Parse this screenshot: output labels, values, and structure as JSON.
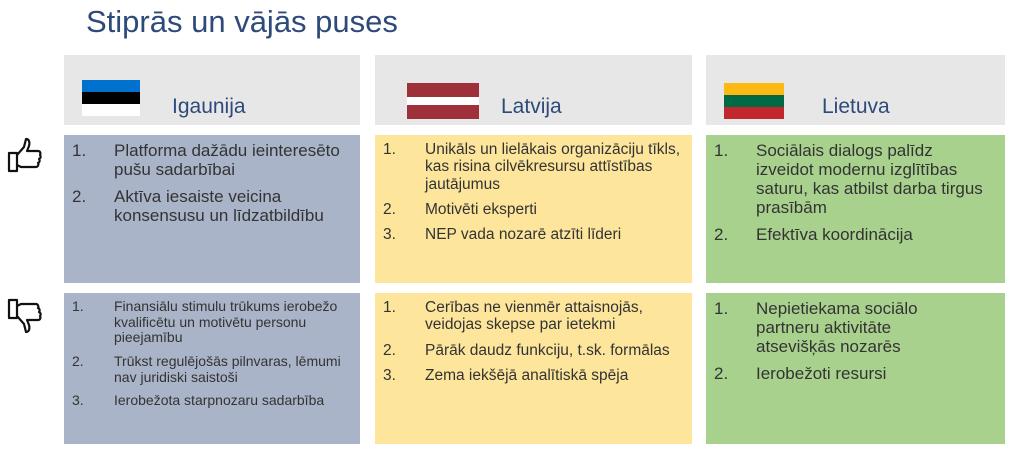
{
  "title": "Stiprās un vājās puses",
  "colors": {
    "estonia": "#aab4c8",
    "latvia": "#fde59b",
    "lithuania": "#a9d18e",
    "header": "#e7e7e7",
    "title": "#2e4a78"
  },
  "icons": {
    "strengths": "thumbs-up-icon",
    "weaknesses": "thumbs-down-icon"
  },
  "columns": [
    {
      "country": "Igaunija",
      "flag": [
        "#0072ce",
        "#000000",
        "#ffffff"
      ],
      "strengths": [
        {
          "n": "1.",
          "text": "Platforma dažādu ieinteresēto pušu sadarbībai"
        },
        {
          "n": "2.",
          "text": "Aktīva iesaiste veicina konsensusu un līdzatbildību"
        }
      ],
      "weaknesses": [
        {
          "n": "1.",
          "text": "Finansiālu stimulu trūkums ierobežo kvalificētu un motivētu personu pieejamību"
        },
        {
          "n": "2.",
          "text": "Trūkst regulējošās pilnvaras, lēmumi nav juridiski saistoši"
        },
        {
          "n": "3.",
          "text": "Ierobežota starpnozaru sadarbība"
        }
      ]
    },
    {
      "country": "Latvija",
      "flag": [
        "#9e3039",
        "#ffffff",
        "#9e3039"
      ],
      "strengths": [
        {
          "n": "1.",
          "text": "Unikāls un lielākais organizāciju tīkls, kas risina cilvēkresursu attīstības jautājumus"
        },
        {
          "n": "2.",
          "text": "Motivēti eksperti"
        },
        {
          "n": "3.",
          "text": "NEP vada nozarē atzīti līderi"
        }
      ],
      "weaknesses": [
        {
          "n": "1.",
          "text": "Cerības ne vienmēr attaisnojās, veidojas skepse par ietekmi"
        },
        {
          "n": "2.",
          "text": "Pārāk daudz funkciju, t.sk. formālas"
        },
        {
          "n": "3.",
          "text": "Zema iekšējā analītiskā spēja"
        }
      ]
    },
    {
      "country": "Lietuva",
      "flag": [
        "#fdb913",
        "#006a44",
        "#c1272d"
      ],
      "strengths": [
        {
          "n": "1.",
          "text": "Sociālais dialogs palīdz izveidot modernu izglītības saturu, kas atbilst darba tirgus prasībām"
        },
        {
          "n": "2.",
          "text": "Efektīva koordinācija"
        }
      ],
      "weaknesses": [
        {
          "n": "1.",
          "text": "Nepietiekama sociālo partneru aktivitāte atsevišķās nozarēs"
        },
        {
          "n": "2.",
          "text": "Ierobežoti resursi"
        }
      ]
    }
  ]
}
